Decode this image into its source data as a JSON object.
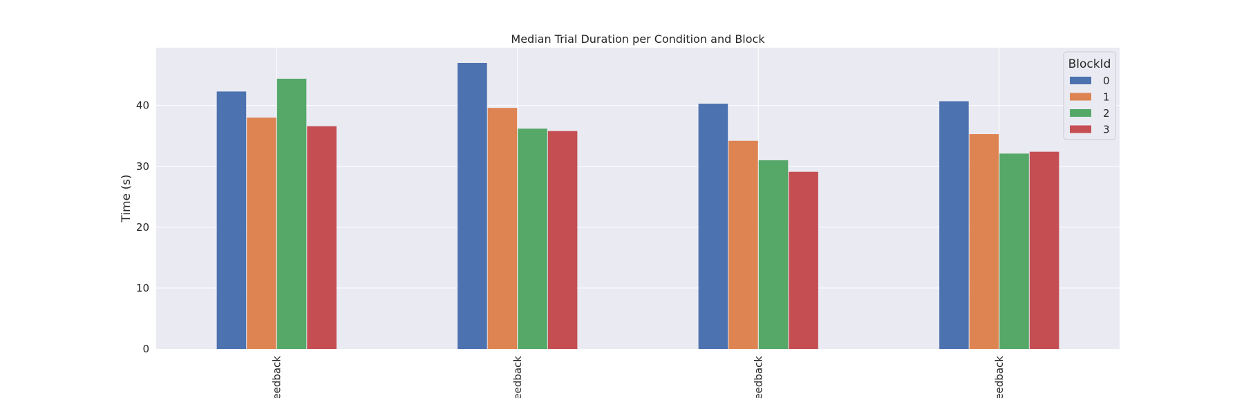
{
  "chart_data": {
    "type": "bar",
    "title": "Median Trial Duration per Condition and Block",
    "xlabel": "",
    "ylabel": "Time (s)",
    "categories": [
      "eedback",
      "eedback",
      "eedback",
      "eedback"
    ],
    "series": [
      {
        "name": "0",
        "color": "#4c72b0",
        "values": [
          42.3,
          47.0,
          40.3,
          40.7
        ]
      },
      {
        "name": "1",
        "color": "#dd8452",
        "values": [
          38.0,
          39.6,
          34.2,
          35.3
        ]
      },
      {
        "name": "2",
        "color": "#55a868",
        "values": [
          44.4,
          36.2,
          31.0,
          32.1
        ]
      },
      {
        "name": "3",
        "color": "#c44e52",
        "values": [
          36.6,
          35.8,
          29.1,
          32.4
        ]
      }
    ],
    "ylim": [
      0,
      49.5
    ],
    "yticks": [
      0,
      10,
      20,
      30,
      40
    ],
    "grid": true,
    "legend": {
      "title": "BlockId",
      "placement": "top-right"
    },
    "background": "#eaeaf2",
    "grid_color": "#ffffff"
  }
}
